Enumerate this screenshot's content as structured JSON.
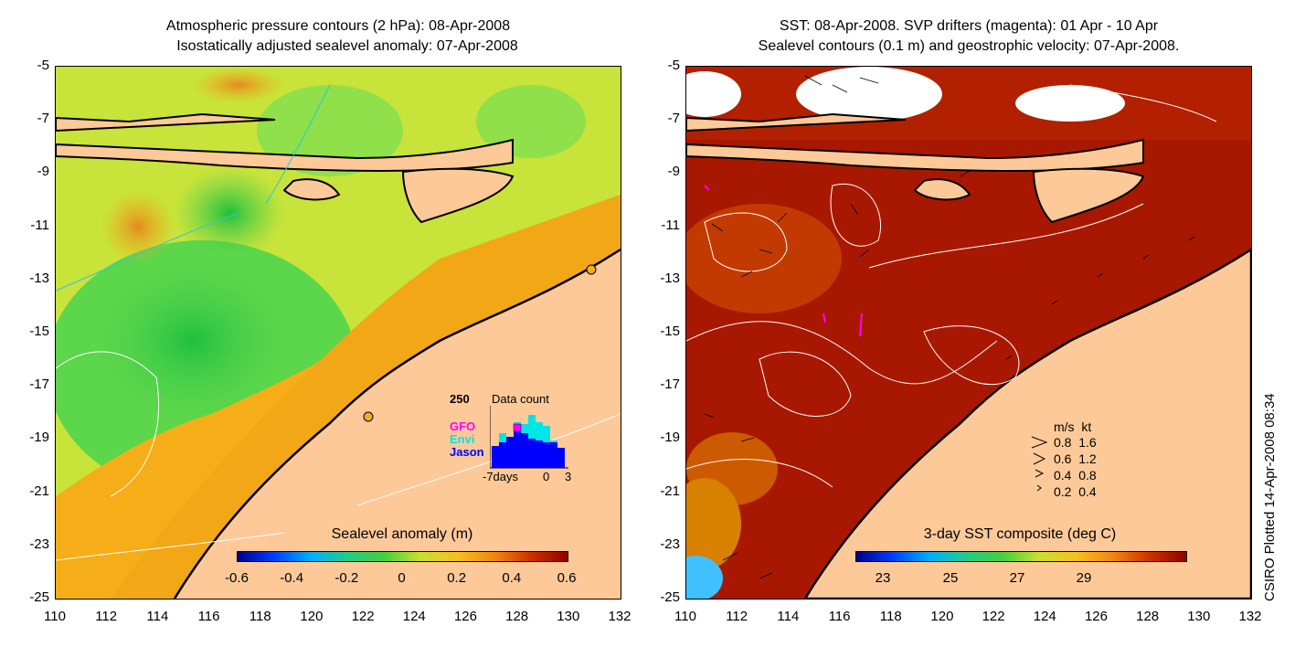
{
  "left_panel": {
    "title_line1": "Atmospheric pressure contours (2 hPa): 08-Apr-2008",
    "title_line2": "Isostatically adjusted sealevel anomaly: 07-Apr-2008",
    "colorbar_title": "Sealevel anomaly (m)",
    "colorbar_ticks": [
      "-0.6",
      "-0.4",
      "-0.2",
      "0",
      "0.2",
      "0.4",
      "0.6"
    ],
    "data_count": {
      "max_label": "250",
      "title": "Data count",
      "series_labels": [
        "GFO",
        "Envi",
        "Jason"
      ],
      "series_colors": [
        "#ff00ff",
        "#00e5e5",
        "#0000ff"
      ],
      "x_labels": [
        "-7days",
        "0",
        "3"
      ]
    }
  },
  "right_panel": {
    "title_line1": "SST: 08-Apr-2008. SVP drifters (magenta): 01 Apr - 10 Apr",
    "title_line2": "Sealevel contours (0.1 m) and geostrophic velocity: 07-Apr-2008.",
    "colorbar_title": "3-day SST composite (deg C)",
    "colorbar_ticks": [
      "23",
      "25",
      "27",
      "29"
    ],
    "velocity_legend": {
      "header": "m/s  kt",
      "rows": [
        "0.8  1.6",
        "0.6  1.2",
        "0.4  0.8",
        "0.2  0.4"
      ]
    }
  },
  "axes": {
    "y_ticks": [
      "-5",
      "-7",
      "-9",
      "-11",
      "-13",
      "-15",
      "-17",
      "-19",
      "-21",
      "-23",
      "-25"
    ],
    "x_ticks": [
      "110",
      "112",
      "114",
      "116",
      "118",
      "120",
      "122",
      "124",
      "126",
      "128",
      "130",
      "132"
    ]
  },
  "credit": "CSIRO Plotted 14-Apr-2008 08:34",
  "colors": {
    "land": "#fdc998",
    "sst_warm": "#a11000",
    "sla_green": "#4fd34f",
    "sla_yellow": "#e6e62a",
    "sla_orange": "#f5ae18"
  }
}
